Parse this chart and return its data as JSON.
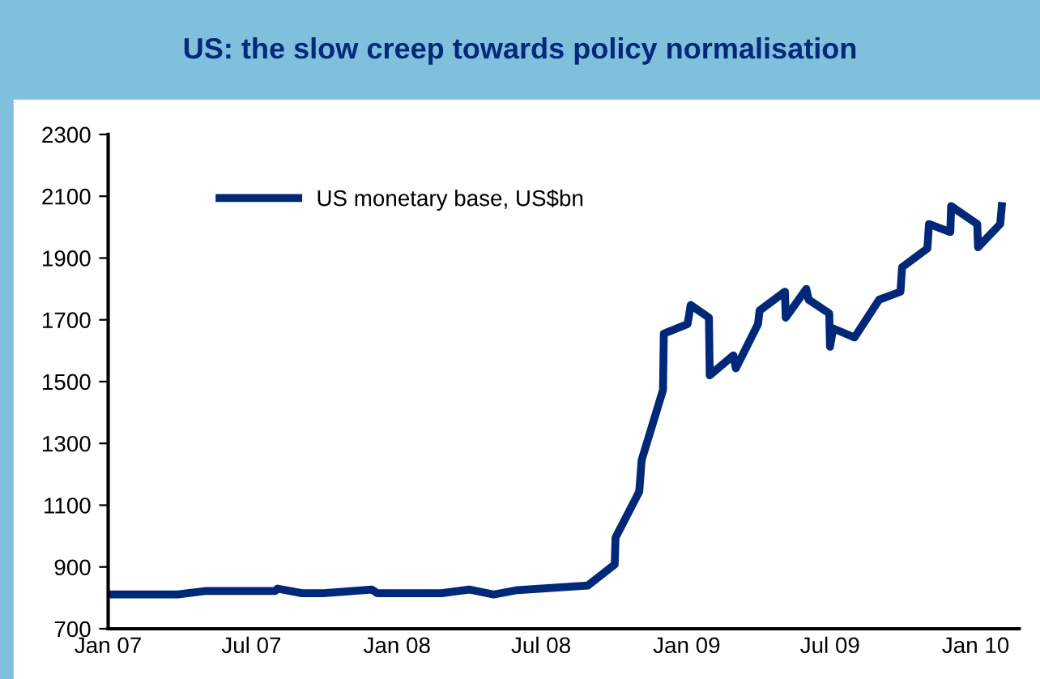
{
  "chart_data": {
    "type": "line",
    "title": "US: the slow creep towards policy normalisation",
    "x": [
      "2007-01-01",
      "2007-03-30",
      "2007-05-03",
      "2007-07-31",
      "2007-08-03",
      "2007-09-03",
      "2007-09-30",
      "2007-11-30",
      "2007-12-07",
      "2008-02-26",
      "2008-04-01",
      "2008-05-02",
      "2008-06-01",
      "2008-07-02",
      "2008-08-29",
      "2008-10-02",
      "2008-10-03",
      "2008-11-02",
      "2008-11-05",
      "2008-12-02",
      "2008-12-03",
      "2009-01-02",
      "2009-01-06",
      "2009-01-29",
      "2009-01-30",
      "2009-03-01",
      "2009-03-04",
      "2009-04-01",
      "2009-04-03",
      "2009-05-05",
      "2009-05-06",
      "2009-06-01",
      "2009-06-04",
      "2009-06-30",
      "2009-07-01",
      "2009-07-05",
      "2009-08-01",
      "2009-09-01",
      "2009-09-28",
      "2009-09-30",
      "2009-11-01",
      "2009-11-03",
      "2009-11-30",
      "2009-12-01",
      "2010-01-03",
      "2010-01-04",
      "2010-02-01",
      "2010-02-03"
    ],
    "series": [
      {
        "name": "US monetary base, US$bn",
        "color": "#002878",
        "values": [
          811,
          811,
          822,
          822,
          830,
          815,
          815,
          827,
          815,
          815,
          827,
          811,
          825,
          830,
          840,
          908,
          995,
          1144,
          1246,
          1473,
          1655,
          1686,
          1748,
          1707,
          1520,
          1585,
          1543,
          1686,
          1730,
          1791,
          1707,
          1800,
          1765,
          1721,
          1613,
          1672,
          1643,
          1765,
          1791,
          1870,
          1931,
          2010,
          1984,
          2068,
          2010,
          1935,
          2010,
          2068
        ]
      }
    ],
    "xlim": [
      "2007-01-01",
      "2010-02-25"
    ],
    "xticks": [
      {
        "value": "2007-01-01",
        "label": "Jan 07"
      },
      {
        "value": "2007-07-01",
        "label": "Jul 07"
      },
      {
        "value": "2008-01-01",
        "label": "Jan 08"
      },
      {
        "value": "2008-07-01",
        "label": "Jul 08"
      },
      {
        "value": "2009-01-01",
        "label": "Jan 09"
      },
      {
        "value": "2009-07-01",
        "label": "Jul 09"
      },
      {
        "value": "2010-01-01",
        "label": "Jan 10"
      }
    ],
    "ylim": [
      700,
      2300
    ],
    "yticks": [
      700,
      900,
      1100,
      1300,
      1500,
      1700,
      1900,
      2100,
      2300
    ],
    "legend": "top left",
    "grid": false,
    "marker": "none",
    "line_style": "solid"
  }
}
